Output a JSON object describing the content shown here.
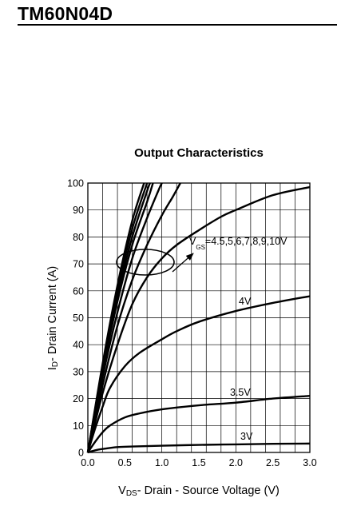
{
  "header": {
    "part_number": "TM60N04D"
  },
  "chart_data": {
    "type": "line",
    "title": "Output Characteristics",
    "xlabel": {
      "main": "V",
      "sub": "DS",
      "rest": "- Drain - Source Voltage (V)"
    },
    "ylabel": {
      "main": "I",
      "sub": "D",
      "rest": "- Drain Current (A)"
    },
    "xlim": [
      0,
      3.0
    ],
    "ylim": [
      0,
      100
    ],
    "x_ticks": [
      "0.0",
      "0.5",
      "1.0",
      "1.5",
      "2.0",
      "2.5",
      "3.0"
    ],
    "y_ticks": [
      "0",
      "10",
      "20",
      "30",
      "40",
      "50",
      "60",
      "70",
      "80",
      "90",
      "100"
    ],
    "grid": true,
    "series": [
      {
        "name": "3V",
        "points": [
          [
            0,
            0
          ],
          [
            0.1,
            0.8
          ],
          [
            0.2,
            1.3
          ],
          [
            0.4,
            2.0
          ],
          [
            0.6,
            2.2
          ],
          [
            1.0,
            2.5
          ],
          [
            1.5,
            2.8
          ],
          [
            2.0,
            3.0
          ],
          [
            2.5,
            3.2
          ],
          [
            3.0,
            3.3
          ]
        ]
      },
      {
        "name": "3.5V",
        "points": [
          [
            0,
            0
          ],
          [
            0.1,
            4
          ],
          [
            0.2,
            7.5
          ],
          [
            0.3,
            10
          ],
          [
            0.5,
            13
          ],
          [
            0.7,
            14.5
          ],
          [
            1.0,
            16
          ],
          [
            1.5,
            17.5
          ],
          [
            2.0,
            18.5
          ],
          [
            2.5,
            20
          ],
          [
            3.0,
            21
          ]
        ]
      },
      {
        "name": "4V",
        "points": [
          [
            0,
            0
          ],
          [
            0.1,
            9
          ],
          [
            0.2,
            17
          ],
          [
            0.3,
            24
          ],
          [
            0.5,
            32
          ],
          [
            0.7,
            37
          ],
          [
            1.0,
            42
          ],
          [
            1.2,
            45
          ],
          [
            1.5,
            48.5
          ],
          [
            2.0,
            52.5
          ],
          [
            2.5,
            55.5
          ],
          [
            3.0,
            58
          ]
        ]
      },
      {
        "name": "4.5V",
        "points": [
          [
            0,
            0
          ],
          [
            0.2,
            22
          ],
          [
            0.4,
            40
          ],
          [
            0.6,
            55
          ],
          [
            0.8,
            65
          ],
          [
            1.0,
            72
          ],
          [
            1.2,
            77
          ],
          [
            1.5,
            82.5
          ],
          [
            1.8,
            87.5
          ],
          [
            2.0,
            90
          ],
          [
            2.5,
            95.5
          ],
          [
            3.0,
            98.5
          ]
        ]
      },
      {
        "name": "5V",
        "points": [
          [
            0,
            0
          ],
          [
            0.2,
            25
          ],
          [
            0.4,
            47
          ],
          [
            0.6,
            64
          ],
          [
            0.8,
            77
          ],
          [
            1.0,
            88
          ],
          [
            1.15,
            95
          ],
          [
            1.25,
            100
          ]
        ]
      },
      {
        "name": "6V",
        "points": [
          [
            0,
            0
          ],
          [
            0.2,
            28
          ],
          [
            0.4,
            52
          ],
          [
            0.6,
            72
          ],
          [
            0.8,
            87
          ],
          [
            0.95,
            97
          ],
          [
            1.0,
            100
          ]
        ]
      },
      {
        "name": "7V",
        "points": [
          [
            0,
            0
          ],
          [
            0.2,
            30
          ],
          [
            0.4,
            56
          ],
          [
            0.6,
            77
          ],
          [
            0.8,
            93
          ],
          [
            0.88,
            100
          ]
        ]
      },
      {
        "name": "8V",
        "points": [
          [
            0,
            0
          ],
          [
            0.2,
            31
          ],
          [
            0.4,
            58
          ],
          [
            0.6,
            80
          ],
          [
            0.8,
            97
          ],
          [
            0.84,
            100
          ]
        ]
      },
      {
        "name": "9V",
        "points": [
          [
            0,
            0
          ],
          [
            0.2,
            32
          ],
          [
            0.4,
            60
          ],
          [
            0.6,
            83
          ],
          [
            0.8,
            100
          ]
        ]
      },
      {
        "name": "10V",
        "points": [
          [
            0,
            0
          ],
          [
            0.2,
            33
          ],
          [
            0.4,
            62
          ],
          [
            0.6,
            86
          ],
          [
            0.76,
            100
          ]
        ]
      }
    ],
    "annotations": {
      "vgs_label": {
        "prefix": "V",
        "sub": "GS",
        "text": "=4.5,5,6,7,8,9,10V"
      },
      "curve_labels": [
        "4V",
        "3.5V",
        "3V"
      ]
    }
  }
}
